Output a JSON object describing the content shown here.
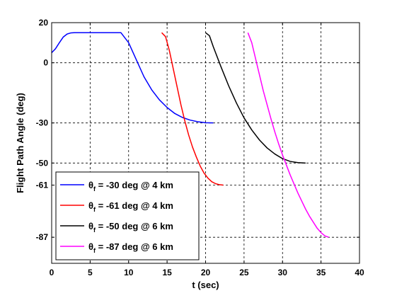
{
  "chart_data": {
    "type": "line",
    "xlabel": "t (sec)",
    "ylabel": "Flight Path Angle (deg)",
    "xlim": [
      0,
      40
    ],
    "ylim": [
      -100,
      20
    ],
    "xticks": [
      0,
      5,
      10,
      15,
      20,
      25,
      30,
      35,
      40
    ],
    "yticks": [
      20,
      0,
      -30,
      -50,
      -61,
      -87
    ],
    "grid": true,
    "legend_position": "bottom-left",
    "series": [
      {
        "name": "θf = -30 deg @ 4 km",
        "legend_main": "θ",
        "legend_sub": "f",
        "legend_rest": " = -30 deg @ 4 km",
        "color": "#0000ff",
        "x": [
          0,
          0.5,
          1,
          1.5,
          2,
          2.5,
          3,
          4,
          5,
          6,
          7,
          8,
          9,
          10,
          11,
          12,
          13,
          14,
          15,
          16,
          17,
          18,
          19,
          20,
          21
        ],
        "y": [
          5,
          7,
          10,
          12.8,
          14.3,
          14.9,
          15,
          15,
          15,
          15,
          15,
          15,
          15,
          10,
          1.5,
          -7,
          -13.5,
          -18.5,
          -22.3,
          -25.3,
          -27.3,
          -28.6,
          -29.4,
          -29.9,
          -30
        ]
      },
      {
        "name": "θf = -61 deg @ 4 km",
        "legend_main": "θ",
        "legend_sub": "f",
        "legend_rest": " = -61 deg @ 4 km",
        "color": "#ff0000",
        "x": [
          14.3,
          14.8,
          15.3,
          15.8,
          16.3,
          16.8,
          17.3,
          17.8,
          18.3,
          18.8,
          19.3,
          19.8,
          20.3,
          20.8,
          21.3,
          21.8,
          22.3
        ],
        "y": [
          15,
          13,
          6,
          -3,
          -12,
          -21,
          -29,
          -36,
          -42,
          -47,
          -51.5,
          -55,
          -57.5,
          -59.3,
          -60.3,
          -60.8,
          -61
        ]
      },
      {
        "name": "θf = -50 deg @ 6 km",
        "legend_main": "θ",
        "legend_sub": "f",
        "legend_rest": " = -50 deg @ 6 km",
        "color": "#000000",
        "x": [
          20,
          20.5,
          21,
          22,
          23,
          24,
          25,
          26,
          27,
          28,
          29,
          30,
          31,
          32,
          33
        ],
        "y": [
          15,
          13.5,
          8,
          -2,
          -11.5,
          -20,
          -27.5,
          -33.5,
          -38.5,
          -42.5,
          -45.5,
          -47.8,
          -49.2,
          -49.8,
          -50
        ]
      },
      {
        "name": "θf = -87 deg @ 6 km",
        "legend_main": "θ",
        "legend_sub": "f",
        "legend_rest": " = -87 deg @ 6 km",
        "color": "#ff00ff",
        "x": [
          25.5,
          26,
          26.5,
          27,
          27.5,
          28,
          28.5,
          29,
          29.5,
          30,
          30.5,
          31,
          31.5,
          32,
          32.5,
          33,
          33.5,
          34,
          34.5,
          35,
          35.5,
          36
        ],
        "y": [
          15,
          10,
          2,
          -6,
          -14,
          -21,
          -28,
          -34.5,
          -40.5,
          -46,
          -51,
          -56,
          -60.5,
          -65,
          -69,
          -73,
          -76.5,
          -79.5,
          -82.5,
          -84.7,
          -86.3,
          -87
        ]
      }
    ]
  }
}
